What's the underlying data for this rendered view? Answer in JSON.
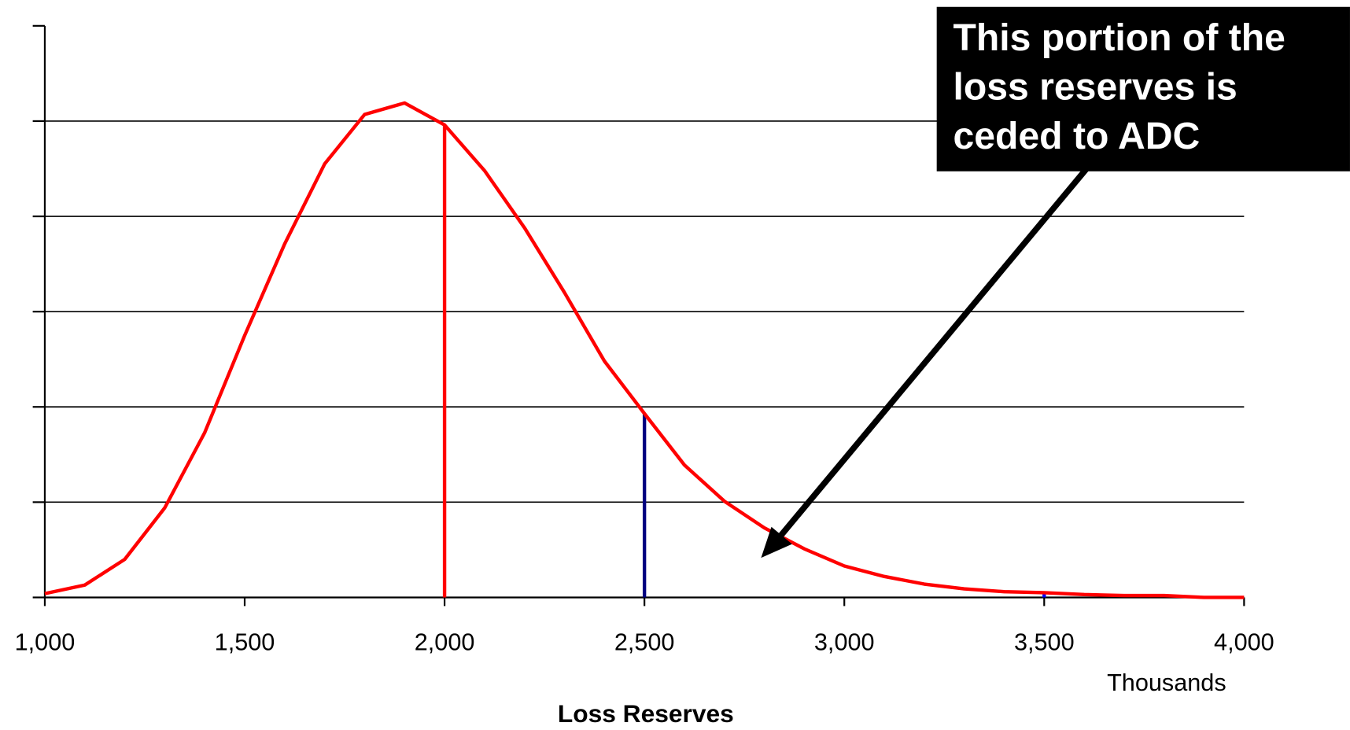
{
  "chart_data": {
    "type": "line",
    "x": [
      1000,
      1100,
      1200,
      1300,
      1400,
      1500,
      1600,
      1700,
      1800,
      1900,
      2000,
      2100,
      2200,
      2300,
      2400,
      2500,
      2600,
      2700,
      2800,
      2900,
      3000,
      3100,
      3200,
      3300,
      3400,
      3500,
      3600,
      3700,
      3800,
      3900,
      4000
    ],
    "series": [
      {
        "color": "#ff0000",
        "values": [
          0.04,
          0.13,
          0.4,
          0.94,
          1.73,
          2.75,
          3.71,
          4.55,
          5.07,
          5.19,
          4.96,
          4.48,
          3.88,
          3.2,
          2.48,
          1.93,
          1.39,
          1.01,
          0.73,
          0.51,
          0.33,
          0.22,
          0.14,
          0.09,
          0.06,
          0.05,
          0.03,
          0.02,
          0.02,
          0,
          0
        ]
      }
    ],
    "markers": [
      {
        "x": 2000,
        "color": "#ff0000"
      },
      {
        "x": 2500,
        "color": "#000080"
      },
      {
        "x": 3500,
        "color": "#0000ff"
      }
    ],
    "xlim": [
      1000,
      4000
    ],
    "xticks": [
      {
        "value": 1000,
        "label": "1,000"
      },
      {
        "value": 1500,
        "label": "1,500"
      },
      {
        "value": 2000,
        "label": "2,000"
      },
      {
        "value": 2500,
        "label": "2,500"
      },
      {
        "value": 3000,
        "label": "3,000"
      },
      {
        "value": 3500,
        "label": "3,500"
      },
      {
        "value": 4000,
        "label": "4,000"
      }
    ],
    "ylim": [
      0,
      6
    ],
    "yticks": [
      0,
      1,
      2,
      3,
      4,
      5,
      6
    ],
    "grid": true,
    "x_unit": "Thousands",
    "xlabel": "Loss Reserves",
    "annotation": {
      "lines": [
        "This portion of the",
        "loss reserves is",
        "ceded to ADC"
      ]
    }
  }
}
